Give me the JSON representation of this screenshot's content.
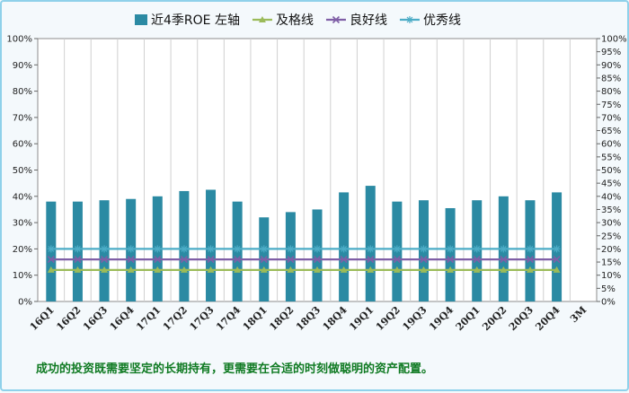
{
  "chart_data": {
    "type": "bar",
    "categories": [
      "16Q1",
      "16Q2",
      "16Q3",
      "16Q4",
      "17Q1",
      "17Q2",
      "17Q3",
      "17Q4",
      "18Q1",
      "18Q2",
      "18Q3",
      "18Q4",
      "19Q1",
      "19Q2",
      "19Q3",
      "19Q4",
      "20Q1",
      "20Q2",
      "20Q3",
      "20Q4",
      "3M"
    ],
    "series": [
      {
        "name": "近4季ROE 左轴",
        "kind": "bar",
        "color": "#2b8aa3",
        "values": [
          38,
          38,
          38.5,
          39,
          40,
          42,
          42.5,
          38,
          32,
          34,
          35,
          41.5,
          44,
          38,
          38.5,
          35.5,
          38.5,
          40,
          38.5,
          41.5,
          null
        ]
      },
      {
        "name": "及格线",
        "kind": "line",
        "marker": "triangle",
        "color": "#9bbb59",
        "values": [
          12,
          12,
          12,
          12,
          12,
          12,
          12,
          12,
          12,
          12,
          12,
          12,
          12,
          12,
          12,
          12,
          12,
          12,
          12,
          12,
          null
        ]
      },
      {
        "name": "良好线",
        "kind": "line",
        "marker": "x",
        "color": "#7f5fa6",
        "values": [
          16,
          16,
          16,
          16,
          16,
          16,
          16,
          16,
          16,
          16,
          16,
          16,
          16,
          16,
          16,
          16,
          16,
          16,
          16,
          16,
          null
        ]
      },
      {
        "name": "优秀线",
        "kind": "line",
        "marker": "star",
        "color": "#4bacc6",
        "values": [
          20,
          20,
          20,
          20,
          20,
          20,
          20,
          20,
          20,
          20,
          20,
          20,
          20,
          20,
          20,
          20,
          20,
          20,
          20,
          20,
          null
        ]
      }
    ],
    "ylim": [
      0,
      100
    ],
    "y_ticks_left": [
      "0%",
      "10%",
      "20%",
      "30%",
      "40%",
      "50%",
      "60%",
      "70%",
      "80%",
      "90%",
      "100%"
    ],
    "y_ticks_right": [
      "0%",
      "5%",
      "10%",
      "15%",
      "20%",
      "25%",
      "30%",
      "35%",
      "40%",
      "45%",
      "50%",
      "55%",
      "60%",
      "65%",
      "70%",
      "75%",
      "80%",
      "85%",
      "90%",
      "95%",
      "100%"
    ],
    "grid": "vertical",
    "legend_position": "top"
  },
  "footnote": "成功的投资既需要坚定的长期持有，更需要在合适的时刻做聪明的资产配置。"
}
